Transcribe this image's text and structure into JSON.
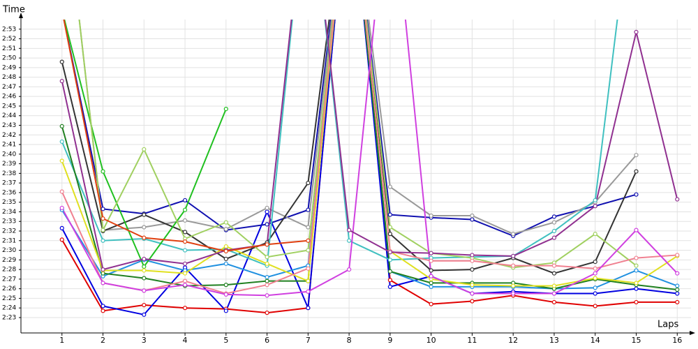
{
  "chart_data": {
    "type": "line",
    "y_label": "Time",
    "x_label": "Laps",
    "x": [
      1,
      2,
      3,
      4,
      5,
      6,
      7,
      8,
      9,
      10,
      11,
      12,
      13,
      14,
      15,
      16
    ],
    "xlim": [
      0,
      16.2
    ],
    "xticks": [
      1,
      2,
      3,
      4,
      5,
      6,
      7,
      8,
      9,
      10,
      11,
      12,
      13,
      14,
      15,
      16
    ],
    "ylim": [
      141.4,
      174
    ],
    "yticks": [
      {
        "value": 143,
        "label": "2:23"
      },
      {
        "value": 144,
        "label": "2:24"
      },
      {
        "value": 145,
        "label": "2:25"
      },
      {
        "value": 146,
        "label": "2:26"
      },
      {
        "value": 147,
        "label": "2:27"
      },
      {
        "value": 148,
        "label": "2:28"
      },
      {
        "value": 149,
        "label": "2:29"
      },
      {
        "value": 150,
        "label": "2:30"
      },
      {
        "value": 151,
        "label": "2:31"
      },
      {
        "value": 152,
        "label": "2:32"
      },
      {
        "value": 153,
        "label": "2:33"
      },
      {
        "value": 154,
        "label": "2:34"
      },
      {
        "value": 155,
        "label": "2:35"
      },
      {
        "value": 156,
        "label": "2:36"
      },
      {
        "value": 157,
        "label": "2:37"
      },
      {
        "value": 158,
        "label": "2:38"
      },
      {
        "value": 159,
        "label": "2:39"
      },
      {
        "value": 160,
        "label": "2:40"
      },
      {
        "value": 161,
        "label": "2:41"
      },
      {
        "value": 162,
        "label": "2:42"
      },
      {
        "value": 163,
        "label": "2:43"
      },
      {
        "value": 164,
        "label": "2:44"
      },
      {
        "value": 165,
        "label": "2:45"
      },
      {
        "value": 166,
        "label": "2:46"
      },
      {
        "value": 167,
        "label": "2:47"
      },
      {
        "value": 168,
        "label": "2:48"
      },
      {
        "value": 169,
        "label": "2:49"
      },
      {
        "value": 170,
        "label": "2:50"
      },
      {
        "value": 171,
        "label": "2:51"
      },
      {
        "value": 172,
        "label": "2:52"
      },
      {
        "value": 173,
        "label": "2:53"
      }
    ],
    "grid": true,
    "series": [
      {
        "color": "#e00000",
        "values": [
          151.1,
          143.7,
          144.3,
          144,
          143.9,
          143.5,
          144,
          190,
          146.9,
          144.4,
          144.7,
          145.3,
          144.6,
          144.2,
          144.6,
          144.6
        ]
      },
      {
        "color": "#0000e0",
        "values": [
          152.3,
          144.2,
          143.3,
          148.2,
          143.7,
          154,
          144,
          190,
          146.2,
          147.3,
          145.5,
          145.7,
          145.5,
          145.5,
          146,
          145.5
        ]
      },
      {
        "color": "#1010b0",
        "values": [
          175,
          154.3,
          153.8,
          155.2,
          152.1,
          152.7,
          154.2,
          190,
          153.7,
          153.4,
          153.2,
          151.5,
          153.5,
          154.6,
          155.8,
          null
        ]
      },
      {
        "color": "#999999",
        "values": [
          190,
          152.1,
          152.4,
          153.1,
          152.2,
          154.4,
          152.4,
          190,
          156.6,
          153.6,
          153.6,
          151.7,
          152.9,
          155,
          159.9,
          null
        ]
      },
      {
        "color": "#333333",
        "values": [
          169.6,
          152,
          153.7,
          151.9,
          149.1,
          150.8,
          157,
          190,
          151.7,
          147.9,
          148,
          149.2,
          147.6,
          148.8,
          158.2,
          null
        ]
      },
      {
        "color": "#40c0c0",
        "values": [
          161.3,
          151,
          151.2,
          150,
          150.1,
          148.4,
          190,
          151,
          149,
          149.2,
          149.3,
          149.4,
          152,
          155.2,
          190,
          null
        ]
      },
      {
        "color": "#2090e0",
        "values": [
          154.2,
          147.3,
          149,
          147.9,
          148.6,
          147.2,
          148.4,
          190,
          147.8,
          146.2,
          146.2,
          146.2,
          146,
          146.1,
          147.9,
          146.3
        ]
      },
      {
        "color": "#20c020",
        "values": [
          175,
          158.2,
          148.3,
          154.2,
          164.7,
          null,
          null,
          null,
          null,
          null,
          null,
          null,
          null,
          null,
          null,
          null
        ]
      },
      {
        "color": "#208020",
        "values": [
          162.9,
          147.6,
          147.1,
          146.3,
          146.4,
          146.8,
          146.8,
          190,
          147.8,
          146.6,
          146.6,
          146.6,
          146,
          147,
          146.4,
          145.9
        ]
      },
      {
        "color": "#e0e020",
        "values": [
          159.3,
          147.9,
          147.9,
          147.6,
          150.4,
          148.6,
          146.8,
          190,
          149.9,
          147,
          146.4,
          146.3,
          146.3,
          147.1,
          146.6,
          149.4
        ]
      },
      {
        "color": "#a0d060",
        "values": [
          190,
          152.1,
          160.5,
          151.2,
          152.9,
          149.3,
          150,
          190,
          152.4,
          149.7,
          149.2,
          148.2,
          148.7,
          151.7,
          148.4,
          null
        ]
      },
      {
        "color": "#f08090",
        "values": [
          156.1,
          146.6,
          145.8,
          146.8,
          145.5,
          146.4,
          148.1,
          190,
          149.9,
          148.9,
          148.9,
          148.4,
          148.4,
          148.1,
          149.2,
          149.5
        ]
      },
      {
        "color": "#d040e0",
        "values": [
          154.4,
          146.6,
          145.8,
          146.4,
          145.4,
          145.3,
          145.7,
          148,
          190,
          147.3,
          145.5,
          145.5,
          145.5,
          147.6,
          152.1,
          147.6
        ]
      },
      {
        "color": "#903090",
        "values": [
          167.6,
          148,
          149.1,
          148.6,
          150,
          150.6,
          190,
          152.1,
          149.8,
          149.7,
          149.5,
          149.4,
          151.3,
          154.6,
          172.7,
          155.3
        ]
      },
      {
        "color": "#e04010",
        "values": [
          175,
          153.3,
          151.3,
          150.9,
          149.9,
          150.6,
          151,
          null,
          null,
          null,
          null,
          null,
          null,
          null,
          null,
          null
        ]
      }
    ]
  }
}
